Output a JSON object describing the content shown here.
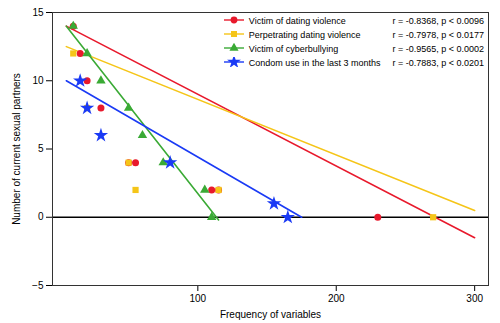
{
  "chart_data": {
    "type": "scatter",
    "xlabel": "Frequency of variables",
    "ylabel": "Number of current sexual partners",
    "xlim": [
      -5,
      310
    ],
    "ylim": [
      -5,
      15
    ],
    "xticks": [
      100,
      200,
      300
    ],
    "yticks": [
      -5,
      0,
      5,
      10,
      15
    ],
    "reference_y": [
      0
    ],
    "legend": "upper right",
    "series": [
      {
        "name": "Victim of dating violence",
        "color": "#e8192c",
        "marker": "circle",
        "x": [
          10,
          15,
          20,
          30,
          50,
          55,
          110,
          115,
          230
        ],
        "values": [
          14,
          12,
          10,
          8,
          4,
          4,
          2,
          2,
          0
        ],
        "fit": {
          "x": [
            5,
            300
          ],
          "values": [
            14.0,
            -1.5
          ]
        },
        "annotation": "r = -0.8368, p < 0.0096"
      },
      {
        "name": "Perpetrating dating violence",
        "color": "#f5c518",
        "marker": "square",
        "x": [
          10,
          20,
          50,
          55,
          115,
          270
        ],
        "values": [
          12,
          8,
          4,
          2,
          2,
          0
        ],
        "fit": {
          "x": [
            5,
            300
          ],
          "values": [
            12.5,
            0.5
          ]
        },
        "annotation": "r = -0.7978, p < 0.0177"
      },
      {
        "name": "Victim of cyberbullying",
        "color": "#3aaa35",
        "marker": "triangle",
        "x": [
          10,
          20,
          30,
          50,
          60,
          75,
          105,
          110
        ],
        "values": [
          14,
          12,
          10,
          8,
          6,
          4,
          2,
          0
        ],
        "fit": {
          "x": [
            5,
            115
          ],
          "values": [
            14.0,
            -0.2
          ]
        },
        "annotation": "r = -0.9565, p < 0.0002"
      },
      {
        "name": "Condom use in the last 3 months",
        "color": "#1a3af5",
        "marker": "star",
        "x": [
          15,
          20,
          30,
          80,
          155,
          165
        ],
        "values": [
          10,
          8,
          6,
          4,
          1,
          0
        ],
        "fit": {
          "x": [
            5,
            175
          ],
          "values": [
            10.0,
            0.0
          ]
        },
        "annotation": "r = -0.7883, p < 0.0201"
      }
    ]
  }
}
